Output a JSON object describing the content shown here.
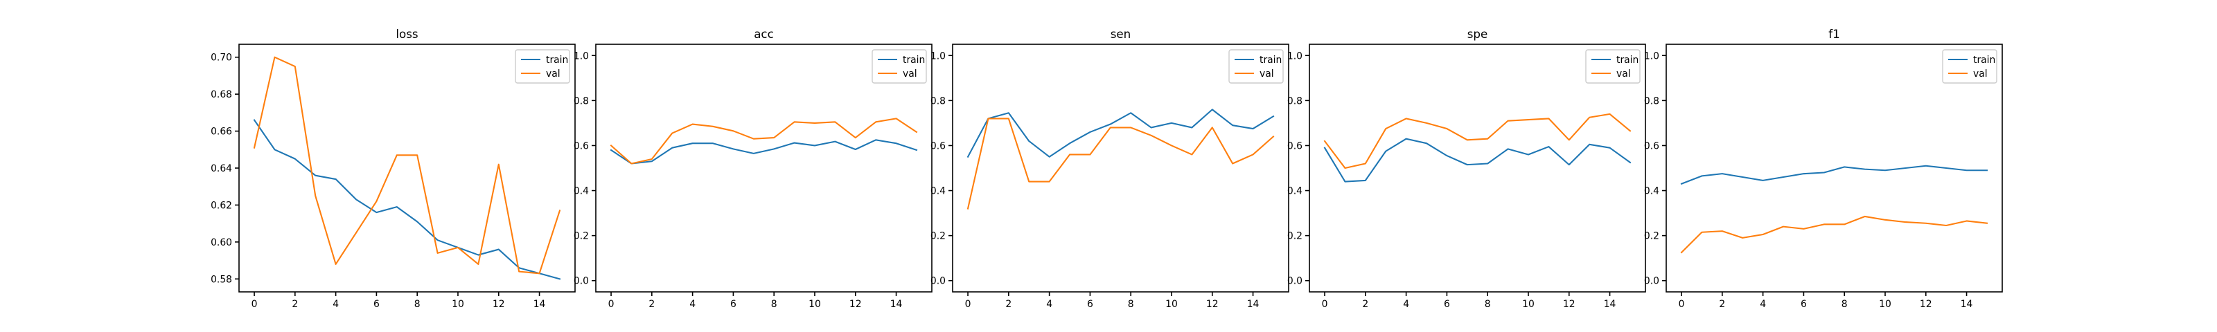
{
  "figure": {
    "x": [
      0,
      1,
      2,
      3,
      4,
      5,
      6,
      7,
      8,
      9,
      10,
      11,
      12,
      13,
      14,
      15
    ],
    "colors": {
      "train": "#1f77b4",
      "val": "#ff7f0e"
    }
  },
  "chart_data": [
    {
      "type": "line",
      "title": "loss",
      "xlabel": "",
      "ylabel": "",
      "xlim": [
        -0.75,
        15.75
      ],
      "ylim": [
        0.573,
        0.707
      ],
      "xticks": [
        0,
        2,
        4,
        6,
        8,
        10,
        12,
        14
      ],
      "yticks": [
        0.58,
        0.6,
        0.62,
        0.64,
        0.66,
        0.68,
        0.7
      ],
      "ytick_labels": [
        "0.58",
        "0.60",
        "0.62",
        "0.64",
        "0.66",
        "0.68",
        "0.70"
      ],
      "grid": false,
      "legend": "top-right",
      "x": [
        0,
        1,
        2,
        3,
        4,
        5,
        6,
        7,
        8,
        9,
        10,
        11,
        12,
        13,
        14,
        15
      ],
      "series": [
        {
          "name": "train",
          "values": [
            0.666,
            0.65,
            0.645,
            0.636,
            0.634,
            0.623,
            0.616,
            0.619,
            0.611,
            0.601,
            0.597,
            0.593,
            0.596,
            0.586,
            0.583,
            0.58
          ]
        },
        {
          "name": "val",
          "values": [
            0.651,
            0.7,
            0.695,
            0.625,
            0.588,
            0.605,
            0.622,
            0.647,
            0.647,
            0.594,
            0.597,
            0.588,
            0.642,
            0.584,
            0.583,
            0.617
          ]
        }
      ]
    },
    {
      "type": "line",
      "title": "acc",
      "xlabel": "",
      "ylabel": "",
      "xlim": [
        -0.75,
        15.75
      ],
      "ylim": [
        -0.05,
        1.05
      ],
      "xticks": [
        0,
        2,
        4,
        6,
        8,
        10,
        12,
        14
      ],
      "yticks": [
        0.0,
        0.2,
        0.4,
        0.6,
        0.8,
        1.0
      ],
      "ytick_labels": [
        "0.0",
        "0.2",
        "0.4",
        "0.6",
        "0.8",
        "1.0"
      ],
      "grid": false,
      "legend": "top-right",
      "x": [
        0,
        1,
        2,
        3,
        4,
        5,
        6,
        7,
        8,
        9,
        10,
        11,
        12,
        13,
        14,
        15
      ],
      "series": [
        {
          "name": "train",
          "values": [
            0.58,
            0.52,
            0.53,
            0.59,
            0.61,
            0.61,
            0.585,
            0.565,
            0.585,
            0.612,
            0.6,
            0.618,
            0.583,
            0.625,
            0.61,
            0.58
          ]
        },
        {
          "name": "val",
          "values": [
            0.6,
            0.52,
            0.54,
            0.655,
            0.695,
            0.685,
            0.665,
            0.63,
            0.635,
            0.705,
            0.7,
            0.705,
            0.635,
            0.705,
            0.72,
            0.66
          ]
        }
      ]
    },
    {
      "type": "line",
      "title": "sen",
      "xlabel": "",
      "ylabel": "",
      "xlim": [
        -0.75,
        15.75
      ],
      "ylim": [
        -0.05,
        1.05
      ],
      "xticks": [
        0,
        2,
        4,
        6,
        8,
        10,
        12,
        14
      ],
      "yticks": [
        0.0,
        0.2,
        0.4,
        0.6,
        0.8,
        1.0
      ],
      "ytick_labels": [
        "0.0",
        "0.2",
        "0.4",
        "0.6",
        "0.8",
        "1.0"
      ],
      "grid": false,
      "legend": "top-right",
      "x": [
        0,
        1,
        2,
        3,
        4,
        5,
        6,
        7,
        8,
        9,
        10,
        11,
        12,
        13,
        14,
        15
      ],
      "series": [
        {
          "name": "train",
          "values": [
            0.55,
            0.72,
            0.745,
            0.62,
            0.55,
            0.61,
            0.66,
            0.695,
            0.745,
            0.68,
            0.7,
            0.68,
            0.76,
            0.69,
            0.675,
            0.73
          ]
        },
        {
          "name": "val",
          "values": [
            0.32,
            0.72,
            0.72,
            0.44,
            0.44,
            0.56,
            0.56,
            0.68,
            0.68,
            0.645,
            0.6,
            0.56,
            0.68,
            0.52,
            0.56,
            0.64
          ]
        }
      ]
    },
    {
      "type": "line",
      "title": "spe",
      "xlabel": "",
      "ylabel": "",
      "xlim": [
        -0.75,
        15.75
      ],
      "ylim": [
        -0.05,
        1.05
      ],
      "xticks": [
        0,
        2,
        4,
        6,
        8,
        10,
        12,
        14
      ],
      "yticks": [
        0.0,
        0.2,
        0.4,
        0.6,
        0.8,
        1.0
      ],
      "ytick_labels": [
        "0.0",
        "0.2",
        "0.4",
        "0.6",
        "0.8",
        "1.0"
      ],
      "grid": false,
      "legend": "top-right",
      "x": [
        0,
        1,
        2,
        3,
        4,
        5,
        6,
        7,
        8,
        9,
        10,
        11,
        12,
        13,
        14,
        15
      ],
      "series": [
        {
          "name": "train",
          "values": [
            0.59,
            0.44,
            0.445,
            0.575,
            0.63,
            0.61,
            0.555,
            0.515,
            0.52,
            0.585,
            0.56,
            0.595,
            0.515,
            0.605,
            0.59,
            0.525
          ]
        },
        {
          "name": "val",
          "values": [
            0.62,
            0.5,
            0.52,
            0.675,
            0.72,
            0.7,
            0.675,
            0.625,
            0.63,
            0.71,
            0.715,
            0.72,
            0.625,
            0.725,
            0.74,
            0.665
          ]
        }
      ]
    },
    {
      "type": "line",
      "title": "f1",
      "xlabel": "",
      "ylabel": "",
      "xlim": [
        -0.75,
        15.75
      ],
      "ylim": [
        -0.05,
        1.05
      ],
      "xticks": [
        0,
        2,
        4,
        6,
        8,
        10,
        12,
        14
      ],
      "yticks": [
        0.0,
        0.2,
        0.4,
        0.6,
        0.8,
        1.0
      ],
      "ytick_labels": [
        "0.0",
        "0.2",
        "0.4",
        "0.6",
        "0.8",
        "1.0"
      ],
      "grid": false,
      "legend": "top-right",
      "x": [
        0,
        1,
        2,
        3,
        4,
        5,
        6,
        7,
        8,
        9,
        10,
        11,
        12,
        13,
        14,
        15
      ],
      "series": [
        {
          "name": "train",
          "values": [
            0.43,
            0.465,
            0.475,
            0.46,
            0.445,
            0.46,
            0.475,
            0.48,
            0.505,
            0.495,
            0.49,
            0.5,
            0.51,
            0.5,
            0.49,
            0.49
          ]
        },
        {
          "name": "val",
          "values": [
            0.125,
            0.215,
            0.22,
            0.19,
            0.205,
            0.24,
            0.23,
            0.25,
            0.25,
            0.285,
            0.27,
            0.26,
            0.255,
            0.245,
            0.265,
            0.255
          ]
        }
      ]
    }
  ]
}
